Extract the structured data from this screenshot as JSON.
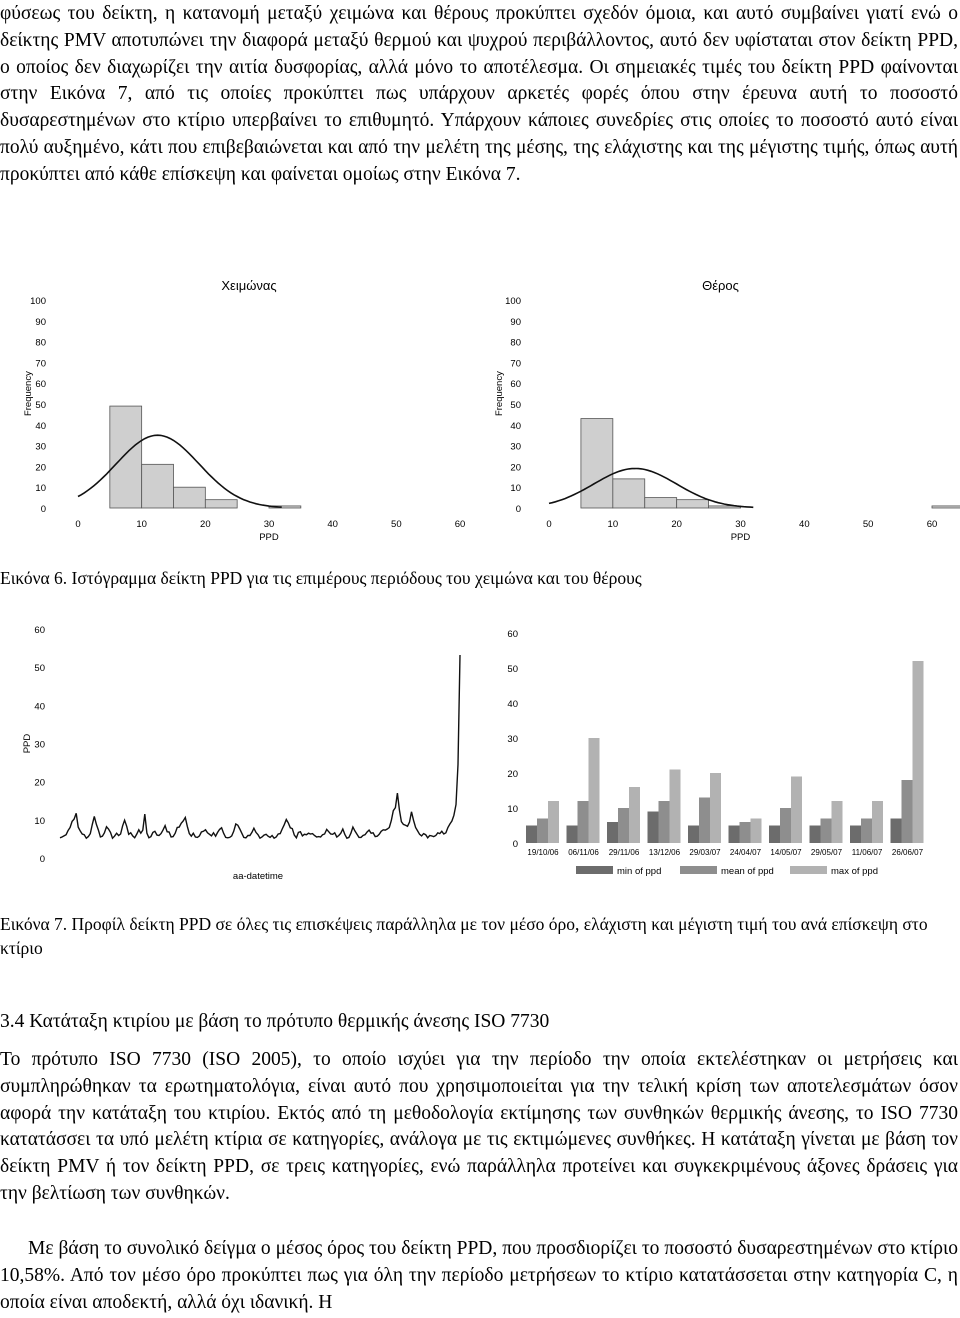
{
  "text": {
    "para1": "φύσεως του δείκτη, η κατανομή μεταξύ χειμώνα και θέρους προκύπτει σχεδόν όμοια, και αυτό συμβαίνει γιατί ενώ ο δείκτης PMV αποτυπώνει την διαφορά μεταξύ θερμού και ψυχρού περιβάλλοντος, αυτό δεν υφίσταται στον δείκτη PPD, ο οποίος δεν διαχωρίζει την αιτία δυσφορίας, αλλά μόνο το αποτέλεσμα. Οι σημειακές τιμές του δείκτη PPD φαίνονται στην Εικόνα 7, από τις οποίες προκύπτει πως υπάρχουν αρκετές φορές όπου στην έρευνα αυτή το ποσοστό δυσαρεστημένων στο κτίριο υπερβαίνει το επιθυμητό. Υπάρχουν κάποιες συνεδρίες στις οποίες το ποσοστό αυτό είναι πολύ αυξημένο, κάτι που επιβεβαιώνεται και από την μελέτη της μέσης, της ελάχιστης και της μέγιστης τιμής, όπως αυτή προκύπτει από κάθε επίσκεψη και φαίνεται ομοίως στην Εικόνα 7.",
    "caption6": "Εικόνα 6. Ιστόγραμμα δείκτη PPD για τις επιμέρους περιόδους του χειμώνα και του θέρους",
    "caption7": "Εικόνα 7. Προφίλ δείκτη PPD σε όλες τις επισκέψεις παράλληλα με τον μέσο όρο, ελάχιστη και μέγιστη τιμή του ανά επίσκεψη στο κτίριο",
    "heading": "3.4 Κατάταξη κτιρίου με βάση το πρότυπο θερμικής άνεσης ISO 7730",
    "para2": "Το πρότυπο ISO 7730 (ISO 2005), το οποίο ισχύει για την περίοδο την οποία εκτελέστηκαν οι μετρήσεις και συμπληρώθηκαν τα ερωτηματολόγια, είναι αυτό που χρησιμοποιείται για την τελική κρίση των αποτελεσμάτων όσον αφορά την κατάταξη του κτιρίου. Εκτός από τη μεθοδολογία εκτίμησης των συνθηκών θερμικής άνεσης, το ISO 7730 κατατάσσει τα υπό μελέτη κτίρια σε κατηγορίες, ανάλογα με τις εκτιμώμενες συνθήκες. Η κατάταξη γίνεται με βάση τον δείκτη PMV ή τον δείκτη PPD, σε τρεις κατηγορίες, ενώ παράλληλα προτείνει και συγκεκριμένους άξονες δράσεις για την βελτίωση των συνθηκών.",
    "para3": "Με βάση το συνολικό δείγμα ο μέσος όρος του δείκτη PPD, που προσδιορίζει το ποσοστό δυσαρεστημένων στο κτίριο 10,58%. Από τον μέσο όρο προκύπτει πως για όλη την περίοδο μετρήσεων το κτίριο κατατάσσεται στην κατηγορία C, η οποία είναι αποδεκτή, αλλά όχι ιδανική. Η"
  },
  "chart_data": [
    {
      "type": "bar",
      "title": "Χειμώνας",
      "xlabel": "PPD",
      "ylabel": "Frequency",
      "xlim": [
        0,
        60
      ],
      "ylim": [
        0,
        100
      ],
      "xticks": [
        "0",
        "10",
        "20",
        "30",
        "40",
        "50",
        "60"
      ],
      "yticks": [
        "0",
        "10",
        "20",
        "30",
        "40",
        "50",
        "60",
        "70",
        "80",
        "90",
        "100"
      ],
      "bins": [
        5,
        10,
        15,
        20,
        25,
        30,
        35,
        40,
        45,
        50,
        55,
        60
      ],
      "values": [
        49,
        21,
        10,
        4,
        0,
        1,
        0,
        0,
        0,
        0,
        0,
        0
      ],
      "normal_curve": {
        "mean": 12.5,
        "peak": 35
      }
    },
    {
      "type": "bar",
      "title": "Θέρος",
      "xlabel": "PPD",
      "ylabel": "Frequency",
      "xlim": [
        0,
        60
      ],
      "ylim": [
        0,
        100
      ],
      "xticks": [
        "0",
        "10",
        "20",
        "30",
        "40",
        "50",
        "60"
      ],
      "yticks": [
        "0",
        "10",
        "20",
        "30",
        "40",
        "50",
        "60",
        "70",
        "80",
        "90",
        "100"
      ],
      "bins": [
        5,
        10,
        15,
        20,
        25,
        30,
        35,
        40,
        45,
        50,
        55,
        60
      ],
      "values": [
        43,
        14,
        5,
        4,
        1,
        0,
        0,
        0,
        0,
        0,
        0,
        1
      ],
      "normal_curve": {
        "mean": 13.5,
        "peak": 19
      }
    },
    {
      "type": "line",
      "xlabel": "aa-datetime",
      "ylabel": "PPD",
      "ylim": [
        0,
        60
      ],
      "yticks": [
        "0",
        "10",
        "20",
        "30",
        "40",
        "50",
        "60"
      ],
      "values": [
        5.3,
        5.5,
        5.8,
        6.1,
        7.2,
        8.0,
        9.6,
        10.2,
        11.7,
        8.1,
        7.1,
        6.3,
        6.1,
        5.2,
        5.6,
        6.4,
        8.8,
        10.9,
        8.8,
        7.3,
        5.5,
        5.7,
        6.6,
        8.2,
        7.6,
        6.7,
        5.2,
        5.7,
        6.5,
        5.9,
        6.3,
        8.4,
        9.9,
        8.3,
        6.2,
        6.6,
        5.8,
        5.3,
        6.3,
        7.4,
        6.5,
        7.3,
        11.5,
        6.5,
        5.3,
        5.6,
        6.7,
        7.0,
        6.0,
        5.9,
        6.4,
        7.3,
        8.5,
        6.9,
        6.8,
        5.5,
        5.6,
        6.5,
        8.0,
        8.1,
        9.1,
        9.7,
        10.6,
        8.3,
        6.4,
        5.7,
        6.5,
        5.5,
        5.4,
        5.8,
        6.8,
        7.0,
        7.4,
        6.6,
        6.2,
        5.8,
        6.6,
        5.7,
        6.7,
        7.5,
        7.9,
        6.5,
        5.4,
        5.3,
        5.4,
        5.8,
        7.0,
        8.9,
        8.6,
        7.6,
        6.5,
        5.4,
        5.3,
        5.9,
        5.9,
        6.7,
        7.8,
        6.7,
        6.1,
        5.2,
        5.5,
        6.0,
        6.2,
        5.7,
        5.4,
        5.9,
        5.2,
        5.5,
        6.3,
        6.4,
        7.6,
        8.7,
        10.1,
        9.2,
        7.9,
        7.7,
        6.0,
        5.3,
        6.7,
        6.9,
        5.8,
        6.2,
        6.1,
        6.5,
        6.3,
        6.4,
        5.9,
        5.5,
        5.6,
        5.5,
        6.1,
        6.3,
        7.5,
        6.9,
        6.3,
        6.2,
        6.6,
        5.5,
        5.9,
        6.5,
        7.6,
        6.2,
        5.2,
        5.4,
        6.5,
        8.1,
        7.1,
        6.2,
        5.4,
        5.4,
        5.9,
        6.1,
        6.8,
        7.3,
        6.5,
        6.6,
        5.6,
        5.7,
        6.2,
        7.0,
        7.4,
        7.3,
        7.6,
        8.0,
        9.8,
        12.4,
        13.2,
        17.0,
        12.6,
        9.5,
        8.8,
        8.6,
        8.3,
        9.4,
        12.1,
        9.9,
        8.0,
        7.1,
        6.2,
        5.8,
        6.4,
        6.1,
        5.3,
        5.9,
        5.8,
        5.6,
        5.9,
        6.6,
        6.4,
        7.0,
        6.3,
        6.6,
        8.0,
        8.9,
        9.7,
        11.2,
        14.0,
        24.5,
        53.2
      ]
    },
    {
      "type": "bar",
      "ylim": [
        0,
        60
      ],
      "yticks": [
        "0",
        "10",
        "20",
        "30",
        "40",
        "50",
        "60"
      ],
      "categories": [
        "19/10/06",
        "06/11/06",
        "29/11/06",
        "13/12/06",
        "29/03/07",
        "24/04/07",
        "14/05/07",
        "29/05/07",
        "11/06/07",
        "26/06/07"
      ],
      "series": [
        {
          "name": "min of ppd",
          "color": "#6c6c6c",
          "values": [
            5,
            5,
            6,
            9,
            5,
            5,
            5,
            5,
            5,
            7
          ]
        },
        {
          "name": "mean of ppd",
          "color": "#8e8e8e",
          "values": [
            7,
            12,
            10,
            12,
            13,
            6,
            10,
            7,
            7,
            18
          ]
        },
        {
          "name": "max of ppd",
          "color": "#b2b2b2",
          "values": [
            12,
            30,
            16,
            21,
            20,
            7,
            19,
            12,
            12,
            52
          ]
        }
      ]
    }
  ]
}
